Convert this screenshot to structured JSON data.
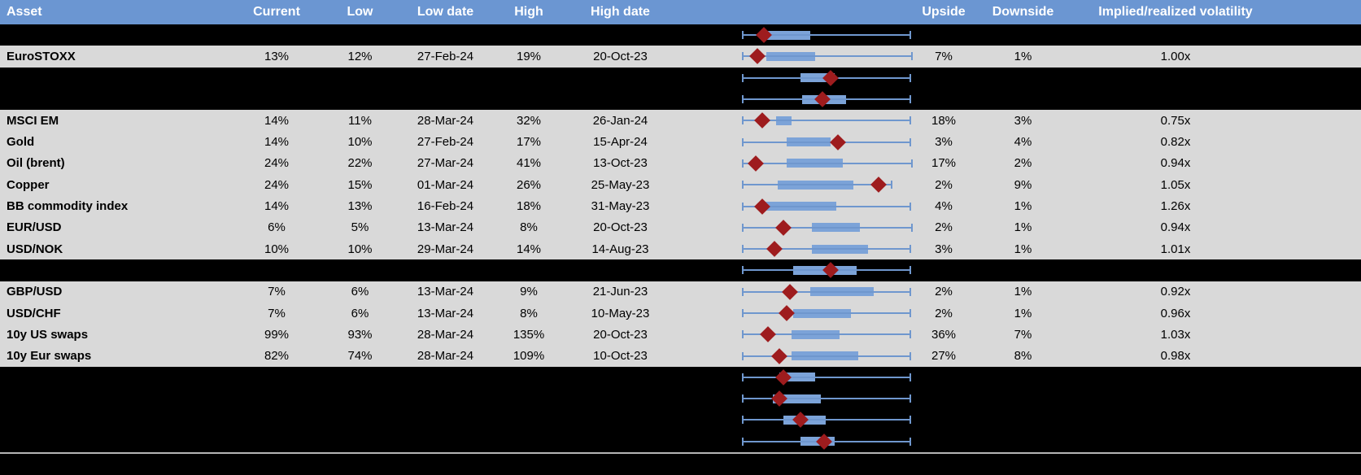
{
  "colors": {
    "header_bg": "#6b96d2",
    "header_text": "#ffffff",
    "row_gray": "#d9d9d9",
    "row_black": "#000000",
    "data_text": "#000000",
    "whisker_blue": "#6f97ce",
    "box_fill": "#7ca3d8",
    "marker_red": "#9e1c1e",
    "separator_gray": "#b5b5b5"
  },
  "header": {
    "asset": "Asset",
    "current": "Current",
    "low": "Low",
    "low_date": "Low date",
    "high": "High",
    "high_date": "High date",
    "plot": "",
    "upside": "Upside",
    "downside": "Downside",
    "impl_real": "Implied/realized volatility"
  },
  "chart_data": {
    "type": "boxplot",
    "note": "horizontal box-and-whisker per row, red diamond = current level, scale 0-100 of 52-week range",
    "legend_position": "none",
    "grid": false
  },
  "rows": [
    {
      "type": "spacer",
      "plot": {
        "lo": 1,
        "q1": 12,
        "q3": 41,
        "hi": 99,
        "m": 14
      }
    },
    {
      "type": "data",
      "label": "EuroSTOXX",
      "current": "13%",
      "low": "12%",
      "low_date": "27-Feb-24",
      "high": "19%",
      "high_date": "20-Oct-23",
      "upside": "7%",
      "downside": "1%",
      "impl_real": "1.00x",
      "plot": {
        "lo": 1,
        "q1": 15,
        "q3": 44,
        "hi": 100,
        "m": 10
      }
    },
    {
      "type": "spacer",
      "plot": {
        "lo": 1,
        "q1": 35,
        "q3": 55,
        "hi": 99,
        "m": 53
      }
    },
    {
      "type": "spacer",
      "plot": {
        "lo": 1,
        "q1": 36,
        "q3": 62,
        "hi": 99,
        "m": 48
      }
    },
    {
      "type": "data",
      "label": "MSCI EM",
      "current": "14%",
      "low": "11%",
      "low_date": "28-Mar-24",
      "high": "32%",
      "high_date": "26-Jan-24",
      "upside": "18%",
      "downside": "3%",
      "impl_real": "0.75x",
      "plot": {
        "lo": 1,
        "q1": 21,
        "q3": 30,
        "hi": 99,
        "m": 13
      }
    },
    {
      "type": "data",
      "label": "Gold",
      "current": "14%",
      "low": "10%",
      "low_date": "27-Feb-24",
      "high": "17%",
      "high_date": "15-Apr-24",
      "upside": "3%",
      "downside": "4%",
      "impl_real": "0.82x",
      "plot": {
        "lo": 1,
        "q1": 27,
        "q3": 53,
        "hi": 99,
        "m": 57
      }
    },
    {
      "type": "data",
      "label": "Oil (brent)",
      "current": "24%",
      "low": "22%",
      "low_date": "27-Mar-24",
      "high": "41%",
      "high_date": "13-Oct-23",
      "upside": "17%",
      "downside": "2%",
      "impl_real": "0.94x",
      "plot": {
        "lo": 1,
        "q1": 27,
        "q3": 60,
        "hi": 100,
        "m": 9
      }
    },
    {
      "type": "data",
      "label": "Copper",
      "current": "24%",
      "low": "15%",
      "low_date": "01-Mar-24",
      "high": "26%",
      "high_date": "25-May-23",
      "upside": "2%",
      "downside": "9%",
      "impl_real": "1.05x",
      "plot": {
        "lo": 1,
        "q1": 22,
        "q3": 66,
        "hi": 88,
        "m": 81
      }
    },
    {
      "type": "data",
      "label": "BB commodity index",
      "current": "14%",
      "low": "13%",
      "low_date": "16-Feb-24",
      "high": "18%",
      "high_date": "31-May-23",
      "upside": "4%",
      "downside": "1%",
      "impl_real": "1.26x",
      "plot": {
        "lo": 1,
        "q1": 14,
        "q3": 56,
        "hi": 99,
        "m": 13
      }
    },
    {
      "type": "data",
      "label": "EUR/USD",
      "current": "6%",
      "low": "5%",
      "low_date": "13-Mar-24",
      "high": "8%",
      "high_date": "20-Oct-23",
      "upside": "2%",
      "downside": "1%",
      "impl_real": "0.94x",
      "plot": {
        "lo": 1,
        "q1": 42,
        "q3": 70,
        "hi": 100,
        "m": 25
      }
    },
    {
      "type": "data",
      "label": "USD/NOK",
      "current": "10%",
      "low": "10%",
      "low_date": "29-Mar-24",
      "high": "14%",
      "high_date": "14-Aug-23",
      "upside": "3%",
      "downside": "1%",
      "impl_real": "1.01x",
      "plot": {
        "lo": 1,
        "q1": 42,
        "q3": 75,
        "hi": 99,
        "m": 20
      }
    },
    {
      "type": "spacer",
      "plot": {
        "lo": 1,
        "q1": 31,
        "q3": 68,
        "hi": 99,
        "m": 53
      }
    },
    {
      "type": "data",
      "label": "GBP/USD",
      "current": "7%",
      "low": "6%",
      "low_date": "13-Mar-24",
      "high": "9%",
      "high_date": "21-Jun-23",
      "upside": "2%",
      "downside": "1%",
      "impl_real": "0.92x",
      "plot": {
        "lo": 1,
        "q1": 41,
        "q3": 78,
        "hi": 99,
        "m": 29
      }
    },
    {
      "type": "data",
      "label": "USD/CHF",
      "current": "7%",
      "low": "6%",
      "low_date": "13-Mar-24",
      "high": "8%",
      "high_date": "10-May-23",
      "upside": "2%",
      "downside": "1%",
      "impl_real": "0.96x",
      "plot": {
        "lo": 1,
        "q1": 31,
        "q3": 65,
        "hi": 99,
        "m": 27
      }
    },
    {
      "type": "data",
      "label": "10y US swaps",
      "current": "99%",
      "low": "93%",
      "low_date": "28-Mar-24",
      "high": "135%",
      "high_date": "20-Oct-23",
      "upside": "36%",
      "downside": "7%",
      "impl_real": "1.03x",
      "plot": {
        "lo": 1,
        "q1": 30,
        "q3": 58,
        "hi": 99,
        "m": 16
      }
    },
    {
      "type": "data",
      "label": "10y Eur swaps",
      "current": "82%",
      "low": "74%",
      "low_date": "28-Mar-24",
      "high": "109%",
      "high_date": "10-Oct-23",
      "upside": "27%",
      "downside": "8%",
      "impl_real": "0.98x",
      "plot": {
        "lo": 1,
        "q1": 30,
        "q3": 69,
        "hi": 99,
        "m": 23
      }
    },
    {
      "type": "spacer",
      "plot": {
        "lo": 1,
        "q1": 23,
        "q3": 44,
        "hi": 99,
        "m": 25
      }
    },
    {
      "type": "spacer",
      "plot": {
        "lo": 1,
        "q1": 19,
        "q3": 47,
        "hi": 99,
        "m": 23
      }
    },
    {
      "type": "spacer",
      "plot": {
        "lo": 1,
        "q1": 25,
        "q3": 50,
        "hi": 99,
        "m": 35
      }
    },
    {
      "type": "spacer",
      "plot": {
        "lo": 1,
        "q1": 35,
        "q3": 55,
        "hi": 99,
        "m": 49
      }
    }
  ]
}
